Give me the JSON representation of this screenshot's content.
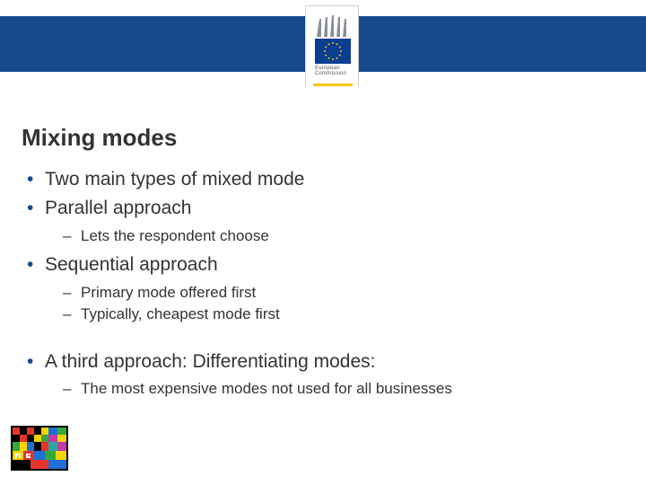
{
  "header": {
    "bar_color": "#164b8f",
    "logo": {
      "org_line1": "European",
      "org_line2": "Commission",
      "flag_bg": "#0b3d91",
      "star_color": "#f7c600",
      "building_color": "#8a8f97",
      "underline_color": "#f7c600"
    }
  },
  "title": "Mixing modes",
  "title_color": "#333333",
  "bullet_color": "#164b8f",
  "text_color": "#333333",
  "items": [
    {
      "text": "Two main types of mixed mode",
      "sub": []
    },
    {
      "text": "Parallel approach",
      "sub": [
        {
          "text": "Lets the respondent choose"
        }
      ]
    },
    {
      "text": "Sequential approach",
      "sub": [
        {
          "text": "Primary mode offered first"
        },
        {
          "text": "Typically, cheapest mode first"
        }
      ]
    },
    {
      "gap": true
    },
    {
      "text": "A third approach: Differentiating modes:",
      "sub": [
        {
          "text": "The most expensive modes not used for all businesses"
        }
      ]
    }
  ],
  "footer_badge": {
    "colors": {
      "black": "#000000",
      "red": "#e5342a",
      "yellow": "#f4d500",
      "green": "#35a83a",
      "blue": "#1e6fd6",
      "magenta": "#c23aa5",
      "cyan": "#2aa4a4",
      "white": "#ffffff"
    }
  }
}
